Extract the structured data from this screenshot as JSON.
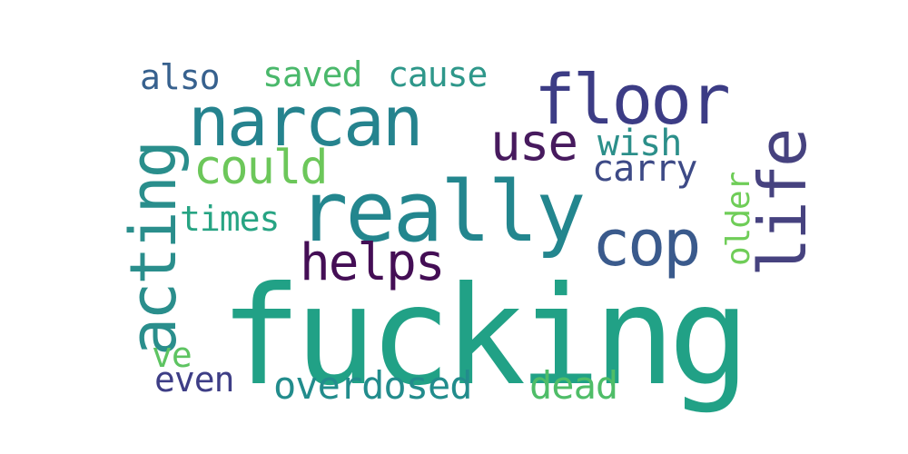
{
  "word_cloud": {
    "words": [
      {
        "text": "fucking",
        "color": "#21a186"
      },
      {
        "text": "really",
        "color": "#23868e"
      },
      {
        "text": "narcan",
        "color": "#25838e"
      },
      {
        "text": "floor",
        "color": "#3c3c85"
      },
      {
        "text": "acting",
        "color": "#2a8e8c"
      },
      {
        "text": "life",
        "color": "#46427f"
      },
      {
        "text": "cop",
        "color": "#3a5a8c"
      },
      {
        "text": "helps",
        "color": "#440e55"
      },
      {
        "text": "use",
        "color": "#471a5e"
      },
      {
        "text": "could",
        "color": "#6cc75a"
      },
      {
        "text": "wish",
        "color": "#2c8f8a"
      },
      {
        "text": "carry",
        "color": "#3d4a86"
      },
      {
        "text": "saved",
        "color": "#4ab86b"
      },
      {
        "text": "cause",
        "color": "#2e978a"
      },
      {
        "text": "also",
        "color": "#37618e"
      },
      {
        "text": "times",
        "color": "#27a483"
      },
      {
        "text": "older",
        "color": "#6fcd58"
      },
      {
        "text": "overdosed",
        "color": "#228c8c"
      },
      {
        "text": "dead",
        "color": "#4fbd68"
      },
      {
        "text": "even",
        "color": "#3e3e86"
      },
      {
        "text": "ve",
        "color": "#5ec462"
      }
    ]
  }
}
